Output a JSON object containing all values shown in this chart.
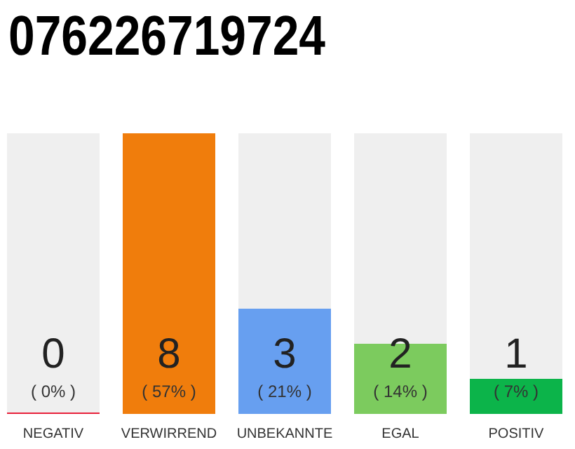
{
  "chart_data": {
    "type": "bar",
    "title": "076226719724",
    "categories": [
      "NEGATIV",
      "VERWIRREND",
      "UNBEKANNTE",
      "EGAL",
      "POSITIV"
    ],
    "values": [
      0,
      8,
      3,
      2,
      1
    ],
    "colors": [
      "#e8203a",
      "#f07d0c",
      "#679ff0",
      "#7ccb5e",
      "#0cb44a"
    ],
    "ylim": [
      0,
      8
    ],
    "data_labels": true,
    "tick_labels": "x",
    "annotations": [
      "( 0% )",
      "( 57% )",
      "( 21% )",
      "( 14% )",
      "( 7% )"
    ]
  }
}
